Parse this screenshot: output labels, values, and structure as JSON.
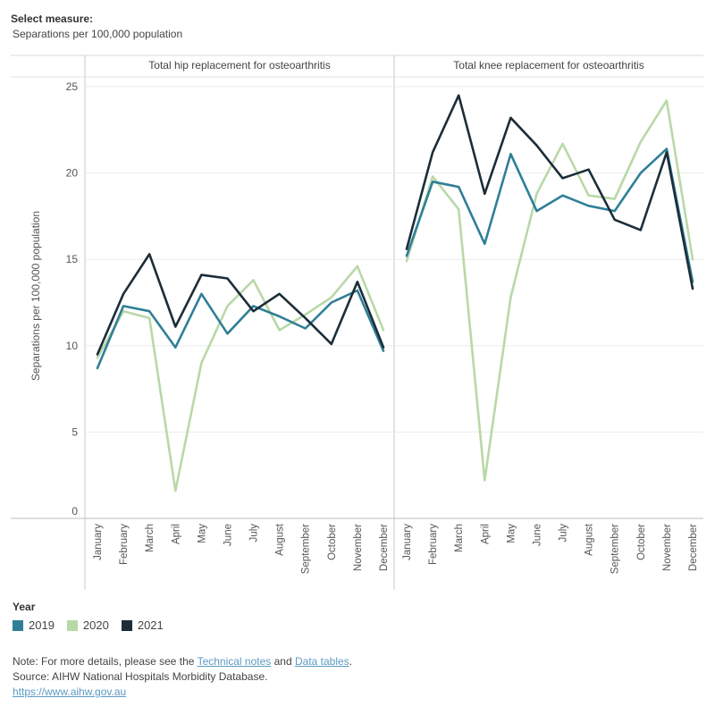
{
  "measure": {
    "label": "Select measure:",
    "value": "Separations per 100,000 population"
  },
  "legend": {
    "title": "Year",
    "items": [
      {
        "name": "2019",
        "color": "#2f7f97"
      },
      {
        "name": "2020",
        "color": "#b9d8a7"
      },
      {
        "name": "2021",
        "color": "#1c2d38"
      }
    ]
  },
  "footer": {
    "note_prefix": "Note: For more details, please see the ",
    "technical_notes": "Technical notes",
    "and_text": " and ",
    "data_tables": "Data tables",
    "period": ".",
    "source": "Source: AIHW National Hospitals Morbidity Database.",
    "url": "https://www.aihw.gov.au"
  },
  "chart_data": {
    "type": "line",
    "ylabel": "Separations per 100,000 population",
    "ylim": [
      0,
      25
    ],
    "yticks": [
      0,
      5,
      10,
      15,
      20,
      25
    ],
    "grid": true,
    "categories": [
      "January",
      "February",
      "March",
      "April",
      "May",
      "June",
      "July",
      "August",
      "September",
      "October",
      "November",
      "December"
    ],
    "panels": [
      {
        "title": "Total hip replacement for osteoarthritis",
        "series": [
          {
            "name": "2019",
            "values": [
              8.7,
              12.3,
              12.0,
              9.9,
              13.0,
              10.7,
              12.3,
              11.7,
              11.0,
              12.5,
              13.2,
              9.7
            ]
          },
          {
            "name": "2020",
            "values": [
              9.3,
              12.0,
              11.6,
              1.6,
              9.0,
              12.3,
              13.8,
              10.9,
              11.8,
              12.8,
              14.6,
              10.9
            ]
          },
          {
            "name": "2021",
            "values": [
              9.5,
              13.0,
              15.3,
              11.1,
              14.1,
              13.9,
              12.0,
              13.0,
              11.6,
              10.1,
              13.7,
              9.9
            ]
          }
        ]
      },
      {
        "title": "Total knee replacement for osteoarthritis",
        "series": [
          {
            "name": "2019",
            "values": [
              15.2,
              19.5,
              19.2,
              15.9,
              21.1,
              17.8,
              18.7,
              18.1,
              17.8,
              20.0,
              21.4,
              13.7
            ]
          },
          {
            "name": "2020",
            "values": [
              14.9,
              19.8,
              17.9,
              2.2,
              12.8,
              18.8,
              21.7,
              18.7,
              18.5,
              21.8,
              24.2,
              15.0
            ]
          },
          {
            "name": "2021",
            "values": [
              15.6,
              21.2,
              24.5,
              18.8,
              23.2,
              21.6,
              19.7,
              20.2,
              17.3,
              16.7,
              21.2,
              13.3
            ]
          }
        ]
      }
    ]
  }
}
